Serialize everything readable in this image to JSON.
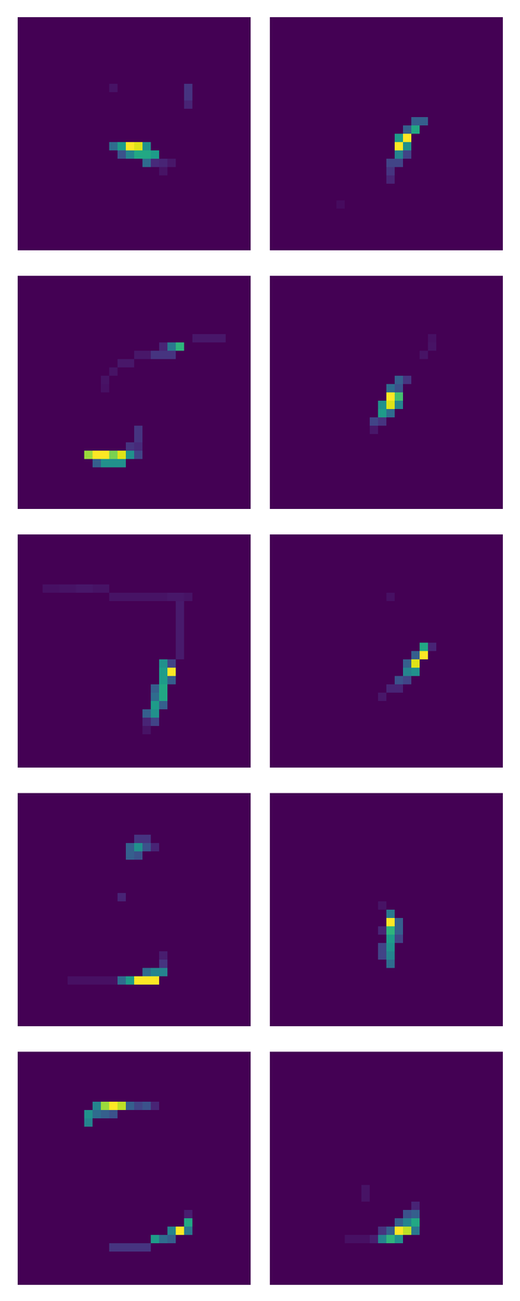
{
  "chart_data": [
    {
      "type": "heatmap",
      "shape": [
        28,
        28
      ],
      "zlim": [
        0,
        1
      ],
      "color": "viridis",
      "tick_labels": false,
      "cells": [
        [
          8,
          20,
          0.15
        ],
        [
          9,
          20,
          0.15
        ],
        [
          10,
          20,
          0.1
        ],
        [
          8,
          11,
          0.05
        ],
        [
          15,
          11,
          0.35
        ],
        [
          15,
          12,
          0.55
        ],
        [
          15,
          13,
          1
        ],
        [
          15,
          14,
          0.95
        ],
        [
          15,
          15,
          0.5
        ],
        [
          16,
          12,
          0.25
        ],
        [
          16,
          13,
          0.45
        ],
        [
          16,
          14,
          0.6
        ],
        [
          16,
          15,
          0.6
        ],
        [
          16,
          16,
          0.55
        ],
        [
          17,
          15,
          0.35
        ],
        [
          17,
          16,
          0.12
        ],
        [
          17,
          17,
          0.1
        ],
        [
          17,
          18,
          0.06
        ],
        [
          18,
          17,
          0.05
        ]
      ]
    },
    {
      "type": "heatmap",
      "shape": [
        28,
        28
      ],
      "zlim": [
        0,
        1
      ],
      "color": "viridis",
      "tick_labels": false,
      "cells": [
        [
          12,
          17,
          0.3
        ],
        [
          12,
          18,
          0.3
        ],
        [
          13,
          16,
          0.3
        ],
        [
          13,
          17,
          0.6
        ],
        [
          14,
          15,
          0.55
        ],
        [
          14,
          16,
          1
        ],
        [
          15,
          15,
          1
        ],
        [
          15,
          16,
          0.5
        ],
        [
          16,
          15,
          0.45
        ],
        [
          16,
          16,
          0.2
        ],
        [
          17,
          14,
          0.2
        ],
        [
          17,
          15,
          0.2
        ],
        [
          18,
          14,
          0.15
        ],
        [
          19,
          14,
          0.1
        ],
        [
          22,
          8,
          0.03
        ]
      ]
    },
    {
      "type": "heatmap",
      "shape": [
        28,
        28
      ],
      "zlim": [
        0,
        1
      ],
      "color": "viridis",
      "tick_labels": false,
      "cells": [
        [
          21,
          8,
          0.85
        ],
        [
          21,
          9,
          1
        ],
        [
          21,
          10,
          1
        ],
        [
          21,
          11,
          0.8
        ],
        [
          21,
          12,
          0.95
        ],
        [
          21,
          13,
          0.5
        ],
        [
          21,
          14,
          0.2
        ],
        [
          22,
          9,
          0.3
        ],
        [
          22,
          10,
          0.5
        ],
        [
          22,
          11,
          0.5
        ],
        [
          22,
          12,
          0.5
        ],
        [
          18,
          14,
          0.15
        ],
        [
          19,
          14,
          0.15
        ],
        [
          20,
          13,
          0.15
        ],
        [
          20,
          14,
          0.12
        ],
        [
          8,
          19,
          0.65
        ],
        [
          8,
          18,
          0.4
        ],
        [
          8,
          17,
          0.1
        ],
        [
          9,
          16,
          0.15
        ],
        [
          9,
          17,
          0.15
        ],
        [
          9,
          18,
          0.15
        ],
        [
          7,
          21,
          0.06
        ],
        [
          7,
          22,
          0.06
        ],
        [
          7,
          23,
          0.06
        ],
        [
          7,
          24,
          0.06
        ],
        [
          9,
          14,
          0.06
        ],
        [
          9,
          15,
          0.06
        ],
        [
          10,
          12,
          0.06
        ],
        [
          10,
          13,
          0.06
        ],
        [
          11,
          11,
          0.05
        ],
        [
          12,
          10,
          0.05
        ],
        [
          13,
          10,
          0.04
        ]
      ]
    },
    {
      "type": "heatmap",
      "shape": [
        28,
        28
      ],
      "zlim": [
        0,
        1
      ],
      "color": "viridis",
      "tick_labels": false,
      "cells": [
        [
          12,
          15,
          0.3
        ],
        [
          12,
          16,
          0.15
        ],
        [
          13,
          14,
          0.35
        ],
        [
          13,
          15,
          0.25
        ],
        [
          14,
          14,
          1
        ],
        [
          14,
          15,
          0.7
        ],
        [
          15,
          13,
          0.5
        ],
        [
          15,
          14,
          0.95
        ],
        [
          15,
          15,
          0.45
        ],
        [
          16,
          13,
          0.55
        ],
        [
          16,
          14,
          0.35
        ],
        [
          17,
          12,
          0.2
        ],
        [
          17,
          13,
          0.15
        ],
        [
          18,
          12,
          0.06
        ],
        [
          8,
          19,
          0.05
        ],
        [
          9,
          18,
          0.05
        ],
        [
          7,
          19,
          0.04
        ]
      ]
    },
    {
      "type": "heatmap",
      "shape": [
        28,
        28
      ],
      "zlim": [
        0,
        1
      ],
      "color": "viridis",
      "tick_labels": false,
      "cells": [
        [
          15,
          17,
          0.5
        ],
        [
          15,
          18,
          0.2
        ],
        [
          16,
          17,
          0.55
        ],
        [
          16,
          18,
          1
        ],
        [
          17,
          17,
          0.55
        ],
        [
          17,
          18,
          0.3
        ],
        [
          18,
          16,
          0.3
        ],
        [
          18,
          17,
          0.6
        ],
        [
          19,
          16,
          0.35
        ],
        [
          19,
          17,
          0.6
        ],
        [
          20,
          16,
          0.55
        ],
        [
          20,
          17,
          0.3
        ],
        [
          21,
          15,
          0.3
        ],
        [
          21,
          16,
          0.5
        ],
        [
          22,
          16,
          0.2
        ],
        [
          22,
          15,
          0.1
        ],
        [
          23,
          15,
          0.05
        ],
        [
          6,
          3,
          0.04
        ],
        [
          6,
          4,
          0.04
        ],
        [
          6,
          5,
          0.05
        ],
        [
          6,
          6,
          0.05
        ],
        [
          6,
          7,
          0.06
        ],
        [
          6,
          8,
          0.06
        ],
        [
          6,
          9,
          0.05
        ],
        [
          6,
          10,
          0.05
        ],
        [
          7,
          11,
          0.05
        ],
        [
          7,
          12,
          0.05
        ],
        [
          7,
          13,
          0.05
        ],
        [
          7,
          14,
          0.05
        ],
        [
          7,
          15,
          0.05
        ],
        [
          7,
          16,
          0.05
        ],
        [
          7,
          17,
          0.05
        ],
        [
          7,
          18,
          0.06
        ],
        [
          7,
          19,
          0.06
        ],
        [
          7,
          20,
          0.05
        ],
        [
          8,
          19,
          0.07
        ],
        [
          9,
          19,
          0.07
        ],
        [
          10,
          19,
          0.07
        ],
        [
          11,
          19,
          0.07
        ],
        [
          12,
          19,
          0.07
        ],
        [
          13,
          19,
          0.07
        ],
        [
          14,
          19,
          0.07
        ]
      ]
    },
    {
      "type": "heatmap",
      "shape": [
        28,
        28
      ],
      "zlim": [
        0,
        1
      ],
      "color": "viridis",
      "tick_labels": false,
      "cells": [
        [
          13,
          18,
          0.6
        ],
        [
          13,
          19,
          0.1
        ],
        [
          14,
          17,
          0.3
        ],
        [
          14,
          18,
          1
        ],
        [
          15,
          16,
          0.3
        ],
        [
          15,
          17,
          0.95
        ],
        [
          16,
          16,
          0.45
        ],
        [
          16,
          17,
          0.5
        ],
        [
          17,
          15,
          0.25
        ],
        [
          17,
          16,
          0.2
        ],
        [
          18,
          14,
          0.1
        ],
        [
          18,
          15,
          0.1
        ],
        [
          19,
          13,
          0.06
        ],
        [
          7,
          14,
          0.04
        ]
      ]
    },
    {
      "type": "heatmap",
      "shape": [
        28,
        28
      ],
      "zlim": [
        0,
        1
      ],
      "color": "viridis",
      "tick_labels": false,
      "cells": [
        [
          22,
          12,
          0.35
        ],
        [
          22,
          13,
          0.55
        ],
        [
          22,
          14,
          1
        ],
        [
          22,
          15,
          1
        ],
        [
          22,
          16,
          1
        ],
        [
          21,
          15,
          0.35
        ],
        [
          21,
          16,
          0.45
        ],
        [
          21,
          17,
          0.45
        ],
        [
          20,
          17,
          0.15
        ],
        [
          19,
          17,
          0.08
        ],
        [
          5,
          14,
          0.15
        ],
        [
          5,
          15,
          0.15
        ],
        [
          6,
          13,
          0.3
        ],
        [
          6,
          14,
          0.5
        ],
        [
          6,
          15,
          0.25
        ],
        [
          6,
          16,
          0.1
        ],
        [
          7,
          13,
          0.3
        ],
        [
          7,
          14,
          0.25
        ],
        [
          12,
          12,
          0.1
        ],
        [
          22,
          6,
          0.04
        ],
        [
          22,
          7,
          0.04
        ],
        [
          22,
          8,
          0.04
        ],
        [
          22,
          9,
          0.04
        ],
        [
          22,
          10,
          0.04
        ],
        [
          22,
          11,
          0.04
        ]
      ]
    },
    {
      "type": "heatmap",
      "shape": [
        28,
        28
      ],
      "zlim": [
        0,
        1
      ],
      "color": "viridis",
      "tick_labels": false,
      "cells": [
        [
          14,
          14,
          0.4
        ],
        [
          15,
          14,
          1
        ],
        [
          15,
          15,
          0.3
        ],
        [
          16,
          13,
          0.1
        ],
        [
          16,
          14,
          0.65
        ],
        [
          16,
          15,
          0.3
        ],
        [
          17,
          14,
          0.55
        ],
        [
          17,
          15,
          0.2
        ],
        [
          18,
          13,
          0.2
        ],
        [
          18,
          14,
          0.5
        ],
        [
          19,
          13,
          0.2
        ],
        [
          19,
          14,
          0.45
        ],
        [
          20,
          14,
          0.35
        ],
        [
          13,
          13,
          0.05
        ]
      ]
    },
    {
      "type": "heatmap",
      "shape": [
        28,
        28
      ],
      "zlim": [
        0,
        1
      ],
      "color": "viridis",
      "tick_labels": false,
      "cells": [
        [
          6,
          9,
          0.45
        ],
        [
          6,
          10,
          0.85
        ],
        [
          6,
          11,
          1
        ],
        [
          6,
          12,
          0.9
        ],
        [
          6,
          13,
          0.3
        ],
        [
          6,
          14,
          0.2
        ],
        [
          6,
          15,
          0.25
        ],
        [
          6,
          16,
          0.1
        ],
        [
          7,
          8,
          0.5
        ],
        [
          7,
          9,
          0.35
        ],
        [
          7,
          10,
          0.3
        ],
        [
          7,
          11,
          0.25
        ],
        [
          8,
          8,
          0.45
        ],
        [
          19,
          20,
          0.08
        ],
        [
          20,
          20,
          0.6
        ],
        [
          21,
          18,
          0.45
        ],
        [
          21,
          19,
          1
        ],
        [
          21,
          20,
          0.4
        ],
        [
          22,
          16,
          0.55
        ],
        [
          22,
          17,
          0.35
        ],
        [
          22,
          18,
          0.3
        ],
        [
          23,
          11,
          0.15
        ],
        [
          23,
          12,
          0.15
        ],
        [
          23,
          13,
          0.15
        ],
        [
          23,
          14,
          0.15
        ],
        [
          23,
          15,
          0.15
        ]
      ]
    },
    {
      "type": "heatmap",
      "shape": [
        28,
        28
      ],
      "zlim": [
        0,
        1
      ],
      "color": "viridis",
      "tick_labels": false,
      "cells": [
        [
          18,
          17,
          0.1
        ],
        [
          19,
          16,
          0.25
        ],
        [
          19,
          17,
          0.3
        ],
        [
          20,
          15,
          0.3
        ],
        [
          20,
          16,
          0.45
        ],
        [
          20,
          17,
          0.6
        ],
        [
          21,
          13,
          0.15
        ],
        [
          21,
          14,
          0.3
        ],
        [
          21,
          15,
          1
        ],
        [
          21,
          16,
          0.9
        ],
        [
          21,
          17,
          0.4
        ],
        [
          22,
          13,
          0.45
        ],
        [
          22,
          14,
          0.65
        ],
        [
          22,
          15,
          0.5
        ],
        [
          22,
          12,
          0.08
        ],
        [
          22,
          9,
          0.04
        ],
        [
          22,
          10,
          0.04
        ],
        [
          22,
          11,
          0.04
        ],
        [
          16,
          11,
          0.05
        ],
        [
          17,
          11,
          0.05
        ]
      ]
    }
  ]
}
